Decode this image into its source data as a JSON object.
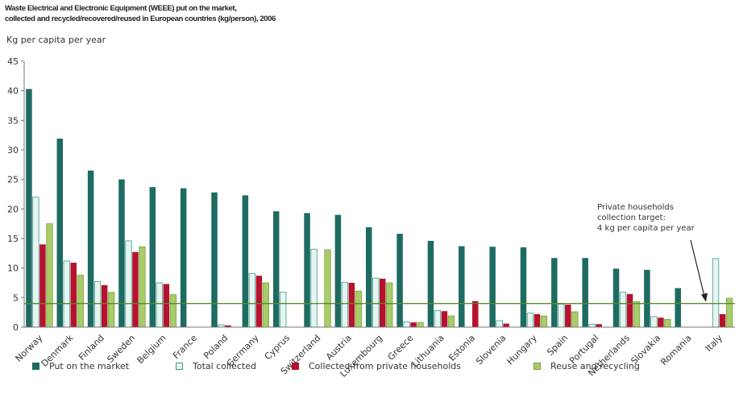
{
  "title_lines": [
    "Waste Electrical and Electronic Equipment (WEEE) put on the market,",
    "collected and recycled/recovered/reused in European countries (kg/person), 2006"
  ],
  "colors": {
    "put_on_market": "#1e6b62",
    "total_collected": "#e6f5f0",
    "total_collected_border": "#3e9a8c",
    "private_households": "#b5122e",
    "reuse_recycling": "#a8cc6a",
    "target_line": "#5a8a2a",
    "axis": "#777777"
  },
  "annotation": {
    "lines": [
      "Private households",
      "collection target:",
      "4 kg per capita per year"
    ]
  },
  "chart_data": {
    "type": "bar",
    "title": "Waste Electrical and Electronic Equipment (WEEE) put on the market, collected and recycled/recovered/reused in European countries (kg/person), 2006",
    "ylabel": "Kg per capita per year",
    "xlabel": "",
    "ylim": [
      0,
      45
    ],
    "yticks": [
      0,
      5,
      10,
      15,
      20,
      25,
      30,
      35,
      40,
      45
    ],
    "grid": false,
    "legend_position": "bottom",
    "target_line": 4,
    "categories": [
      "Norway",
      "Denmark",
      "Finland",
      "Sweden",
      "Belgium",
      "France",
      "Poland",
      "Germany",
      "Cyprus",
      "Switzerland",
      "Austria",
      "Luxembourg",
      "Greece",
      "Lithuania",
      "Estonia",
      "Slovenia",
      "Hungary",
      "Spain",
      "Portugal",
      "Netherlands",
      "Slovakia",
      "Romania",
      "Italy"
    ],
    "series": [
      {
        "name": "Put on the market",
        "key": "put_on_market",
        "values": [
          40.3,
          31.9,
          26.5,
          25.0,
          23.7,
          23.5,
          22.8,
          22.3,
          19.6,
          19.3,
          19.0,
          16.9,
          15.8,
          14.6,
          13.7,
          13.6,
          13.5,
          11.7,
          11.7,
          9.9,
          9.7,
          6.6,
          null
        ]
      },
      {
        "name": "Total collected",
        "key": "total_collected",
        "values": [
          22.0,
          11.2,
          7.7,
          14.6,
          7.5,
          null,
          0.4,
          9.1,
          5.9,
          13.2,
          7.6,
          8.3,
          0.9,
          2.8,
          null,
          1.1,
          2.4,
          3.9,
          0.5,
          5.9,
          1.8,
          null,
          11.6
        ]
      },
      {
        "name": "Collected from private households",
        "key": "private_households",
        "values": [
          14.0,
          10.9,
          7.1,
          12.7,
          7.3,
          null,
          0.3,
          8.7,
          null,
          null,
          7.5,
          8.2,
          0.8,
          2.7,
          4.4,
          0.6,
          2.2,
          3.8,
          0.5,
          5.6,
          1.6,
          null,
          2.2
        ]
      },
      {
        "name": "Reuse and recycling",
        "key": "reuse_recycling",
        "values": [
          17.5,
          8.8,
          5.9,
          13.6,
          5.5,
          null,
          null,
          7.5,
          null,
          13.1,
          6.1,
          7.5,
          0.8,
          1.9,
          null,
          null,
          1.9,
          2.6,
          null,
          4.3,
          1.3,
          null,
          4.9
        ]
      }
    ]
  }
}
